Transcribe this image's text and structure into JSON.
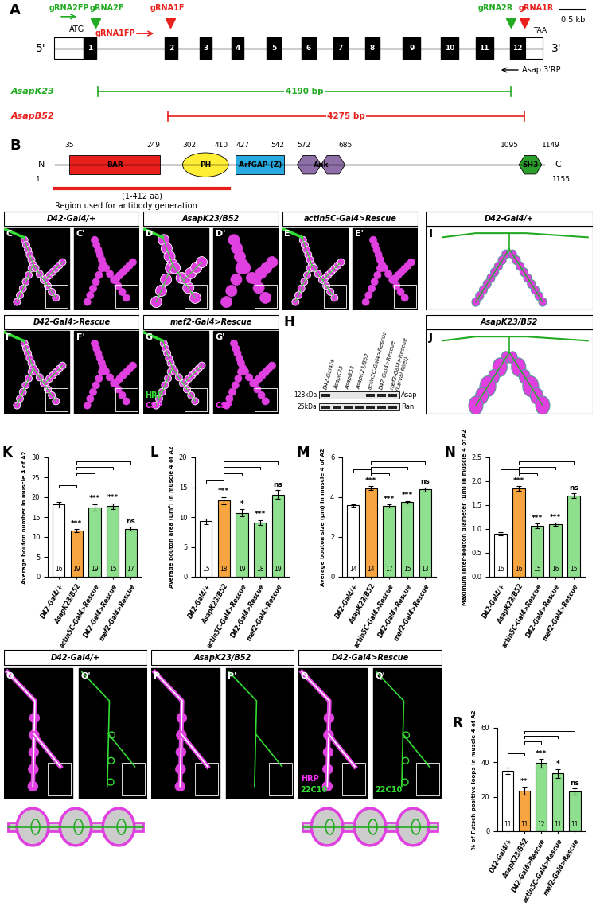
{
  "chart_data": [
    {
      "panel": "K",
      "type": "bar",
      "ylabel": "Average bouton number in muscle 4 of A2",
      "categories": [
        "D42-Gal4/+",
        "AsapK23/B52",
        "actin5C-Gal4>Rescue",
        "D42-Gal4>Rescue",
        "mef2-Gal4>Rescue"
      ],
      "values": [
        18.2,
        11.6,
        17.5,
        17.8,
        12.1
      ],
      "errors": [
        0.7,
        0.45,
        0.8,
        0.7,
        0.5
      ],
      "n": [
        16,
        19,
        19,
        15,
        17
      ],
      "colors": [
        "#ffffff",
        "#f7a541",
        "#8ee08e",
        "#8ee08e",
        "#8ee08e"
      ],
      "ylim": [
        0,
        30
      ],
      "yticks": [
        0,
        5,
        10,
        15,
        20,
        25,
        30
      ],
      "significance": [
        {
          "from": 0,
          "to": 1,
          "label": "***"
        },
        {
          "from": 1,
          "to": 2,
          "label": "***"
        },
        {
          "from": 1,
          "to": 3,
          "label": "***"
        },
        {
          "from": 1,
          "to": 4,
          "label": "ns"
        }
      ]
    },
    {
      "panel": "L",
      "type": "bar",
      "ylabel": "Average bouton area (µm²) in muscle 4 of A2",
      "categories": [
        "D42-Gal4/+",
        "AsapK23/B52",
        "actin5C-Gal4>Rescue",
        "D42-Gal4>Rescue",
        "mef2-Gal4>Rescue"
      ],
      "values": [
        9.3,
        12.8,
        10.7,
        9.1,
        13.8
      ],
      "errors": [
        0.5,
        0.6,
        0.6,
        0.4,
        0.7
      ],
      "n": [
        15,
        18,
        19,
        18,
        19
      ],
      "colors": [
        "#ffffff",
        "#f7a541",
        "#8ee08e",
        "#8ee08e",
        "#8ee08e"
      ],
      "ylim": [
        0,
        20
      ],
      "yticks": [
        0,
        5,
        10,
        15,
        20
      ],
      "significance": [
        {
          "from": 0,
          "to": 1,
          "label": "***"
        },
        {
          "from": 1,
          "to": 2,
          "label": "*"
        },
        {
          "from": 1,
          "to": 3,
          "label": "***"
        },
        {
          "from": 1,
          "to": 4,
          "label": "ns"
        }
      ]
    },
    {
      "panel": "M",
      "type": "bar",
      "ylabel": "Average bouton size (µm) in muscle 4 of A2",
      "categories": [
        "D42-Gal4/+",
        "AsapK23/B52",
        "actin5C-Gal4>Rescue",
        "D42-Gal4>Rescue",
        "mef2-Gal4>Rescue"
      ],
      "values": [
        3.6,
        4.45,
        3.55,
        3.75,
        4.4
      ],
      "errors": [
        0.06,
        0.1,
        0.08,
        0.06,
        0.1
      ],
      "n": [
        14,
        14,
        17,
        15,
        13
      ],
      "colors": [
        "#ffffff",
        "#f7a541",
        "#8ee08e",
        "#8ee08e",
        "#8ee08e"
      ],
      "ylim": [
        0,
        6
      ],
      "yticks": [
        0,
        2,
        4,
        6
      ],
      "significance": [
        {
          "from": 0,
          "to": 1,
          "label": "***"
        },
        {
          "from": 1,
          "to": 2,
          "label": "***"
        },
        {
          "from": 1,
          "to": 3,
          "label": "***"
        },
        {
          "from": 1,
          "to": 4,
          "label": "ns"
        }
      ]
    },
    {
      "panel": "N",
      "type": "bar",
      "ylabel": "Maximum inter-bouton diameter (µm) in muscle 4 of A2",
      "categories": [
        "D42-Gal4/+",
        "AsapK23/B52",
        "actin5C-Gal4>Rescue",
        "D42-Gal4>Rescue",
        "mef2-Gal4>Rescue"
      ],
      "values": [
        0.9,
        1.85,
        1.07,
        1.1,
        1.7
      ],
      "errors": [
        0.03,
        0.05,
        0.05,
        0.03,
        0.05
      ],
      "n": [
        16,
        16,
        15,
        16,
        15
      ],
      "colors": [
        "#ffffff",
        "#f7a541",
        "#8ee08e",
        "#8ee08e",
        "#8ee08e"
      ],
      "ylim": [
        0,
        2.5
      ],
      "yticks": [
        {
          "value": 0,
          "label": "0.0"
        },
        0.5,
        {
          "value": 1,
          "label": "1.0"
        },
        1.5,
        {
          "value": 2,
          "label": "2.0"
        },
        2.5
      ],
      "significance": [
        {
          "from": 0,
          "to": 1,
          "label": "***"
        },
        {
          "from": 1,
          "to": 2,
          "label": "***"
        },
        {
          "from": 1,
          "to": 3,
          "label": "***"
        },
        {
          "from": 1,
          "to": 4,
          "label": "ns"
        }
      ]
    },
    {
      "panel": "R",
      "type": "bar",
      "ylabel": "% of Futsch positive loops in muscle 4 of A2",
      "categories": [
        "D42-Gal4/+",
        "AsapK23/B52",
        "D42-Gal4>Rescue",
        "actin5C-Gal4>Rescue",
        "mef2-Gal4>Rescue"
      ],
      "values": [
        35,
        23.5,
        39.5,
        33.5,
        23
      ],
      "errors": [
        1.8,
        2.4,
        2.6,
        2.7,
        1.9
      ],
      "n": [
        11,
        11,
        12,
        11,
        11
      ],
      "colors": [
        "#ffffff",
        "#f7a541",
        "#8ee08e",
        "#8ee08e",
        "#8ee08e"
      ],
      "ylim": [
        0,
        60
      ],
      "yticks": [
        0,
        20,
        40,
        60
      ],
      "significance": [
        {
          "from": 0,
          "to": 1,
          "label": "**"
        },
        {
          "from": 1,
          "to": 2,
          "label": "***"
        },
        {
          "from": 1,
          "to": 3,
          "label": "*"
        },
        {
          "from": 1,
          "to": 4,
          "label": "ns"
        }
      ]
    }
  ],
  "gene_diagram": {
    "panel": "A",
    "five_prime": "5'",
    "three_prime": "3'",
    "start_codon": "ATG",
    "stop_codon": "TAA",
    "exons": [
      "1",
      "2",
      "3",
      "4",
      "5",
      "6",
      "7",
      "8",
      "9",
      "10",
      "11",
      "12"
    ],
    "scale_bar": "0.5 kb",
    "guides": [
      {
        "label": "gRNA2FP",
        "color": "#22aa22"
      },
      {
        "label": "gRNA2F",
        "color": "#22aa22"
      },
      {
        "label": "gRNA1F",
        "color": "#e8201c"
      },
      {
        "label": "gRNA1FP",
        "color": "#e8201c"
      },
      {
        "label": "gRNA2R",
        "color": "#22aa22"
      },
      {
        "label": "gRNA1R",
        "color": "#e8201c"
      }
    ],
    "reverse_primer": "Asap 3'RP",
    "deletions": [
      {
        "allele": "AsapK23",
        "length": "4190 bp",
        "color": "#22aa22"
      },
      {
        "allele": "AsapB52",
        "length": "4275 bp",
        "color": "#e8201c"
      }
    ]
  },
  "protein": {
    "panel": "B",
    "n_term": "N",
    "c_term": "C",
    "start": 1,
    "length": 1155,
    "domains": [
      {
        "name": "BAR",
        "start": 35,
        "end": 249,
        "color": "#e8201c"
      },
      {
        "name": "PH",
        "start": 302,
        "end": 410,
        "color": "#ffee33"
      },
      {
        "name": "ArfGAP (Z)",
        "start": 427,
        "end": 542,
        "color": "#29abe2"
      },
      {
        "name": "Ank",
        "start": 572,
        "end": 685,
        "color": "#8e6fa8"
      },
      {
        "name": "SH3",
        "start": 1095,
        "end": 1149,
        "color": "#2ca02c"
      }
    ],
    "antibody_region": {
      "start": 1,
      "end": 412,
      "label": "(1-412 aa)",
      "note": "Region used for antibody generation"
    }
  },
  "images": [
    {
      "panels": [
        "C",
        "C'"
      ],
      "title": "D42-Gal4/+"
    },
    {
      "panels": [
        "D",
        "D'"
      ],
      "title": "AsapK23/B52"
    },
    {
      "panels": [
        "E",
        "E'"
      ],
      "title": "actin5C-Gal4>Rescue"
    },
    {
      "panels": [
        "F",
        "F'"
      ],
      "title": "D42-Gal4>Rescue"
    },
    {
      "panels": [
        "G",
        "G'"
      ],
      "title": "mef2-Gal4>Rescue",
      "labels": [
        {
          "text": "HRP",
          "color": "#33dd33"
        },
        {
          "text": "CSP",
          "color": "#ff33ff"
        }
      ],
      "labels2": [
        {
          "text": "CSP",
          "color": "#ff33ff"
        }
      ]
    }
  ],
  "western": {
    "panel": "H",
    "lanes": [
      "D42-Gal4/+",
      "AsapK23",
      "AsapB52",
      "AsapK23/B52",
      "actin5C-Gal4>Rescue",
      "D42-Gal4>Rescue",
      "mef2-Gal4>Rescue\n(Larval fillet)"
    ],
    "bands": [
      {
        "size": "128kDa",
        "protein": "Asap",
        "present": [
          true,
          false,
          false,
          false,
          true,
          true,
          true
        ]
      },
      {
        "size": "25kDa",
        "protein": "Ran",
        "present": [
          true,
          true,
          true,
          true,
          true,
          true,
          true
        ]
      }
    ]
  },
  "schematics": [
    {
      "panel": "I",
      "title": "D42-Gal4/+"
    },
    {
      "panel": "J",
      "title": "AsapK23/B52"
    }
  ],
  "futsch_images": [
    {
      "panels": [
        "O",
        "O'"
      ],
      "title": "D42-Gal4/+"
    },
    {
      "panels": [
        "P",
        "P'"
      ],
      "title": "AsapK23/B52"
    },
    {
      "panels": [
        "Q",
        "Q'"
      ],
      "title": "D42-Gal4>Rescue",
      "labels": [
        {
          "text": "HRP",
          "color": "#ff33ff"
        },
        {
          "text": "22C10",
          "color": "#33dd33"
        }
      ],
      "labels2": [
        {
          "text": "22C10",
          "color": "#33dd33"
        }
      ]
    }
  ]
}
